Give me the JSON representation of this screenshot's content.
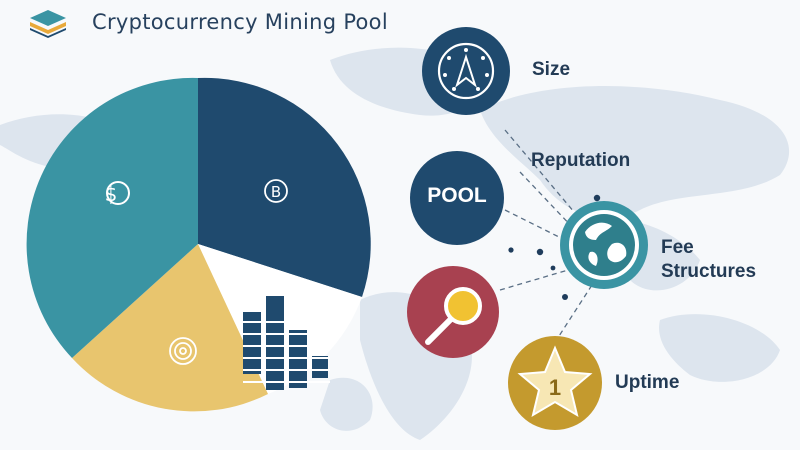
{
  "header": {
    "title": "Cryptocurrency Mining Pool"
  },
  "factors": {
    "size": "Size",
    "reputation": "Reputation",
    "pool": "POOL",
    "fee_line1": "Fee",
    "fee_line2": "Structures",
    "uptime": "Uptime"
  },
  "icons": {
    "pie_blue": "bitcoin-icon",
    "pie_teal": "dollar-coin-icon",
    "pie_yellow": "target-coin-icon",
    "size": "compass-icon",
    "fee": "globe-icon",
    "search": "magnifier-icon",
    "uptime": "star-number-icon",
    "star_number": "1"
  },
  "colors": {
    "navy": "#1f4a6e",
    "teal": "#3a94a3",
    "yellow": "#e8c56e",
    "red": "#a84150",
    "gold": "#c49a2e",
    "text": "#233b55"
  }
}
